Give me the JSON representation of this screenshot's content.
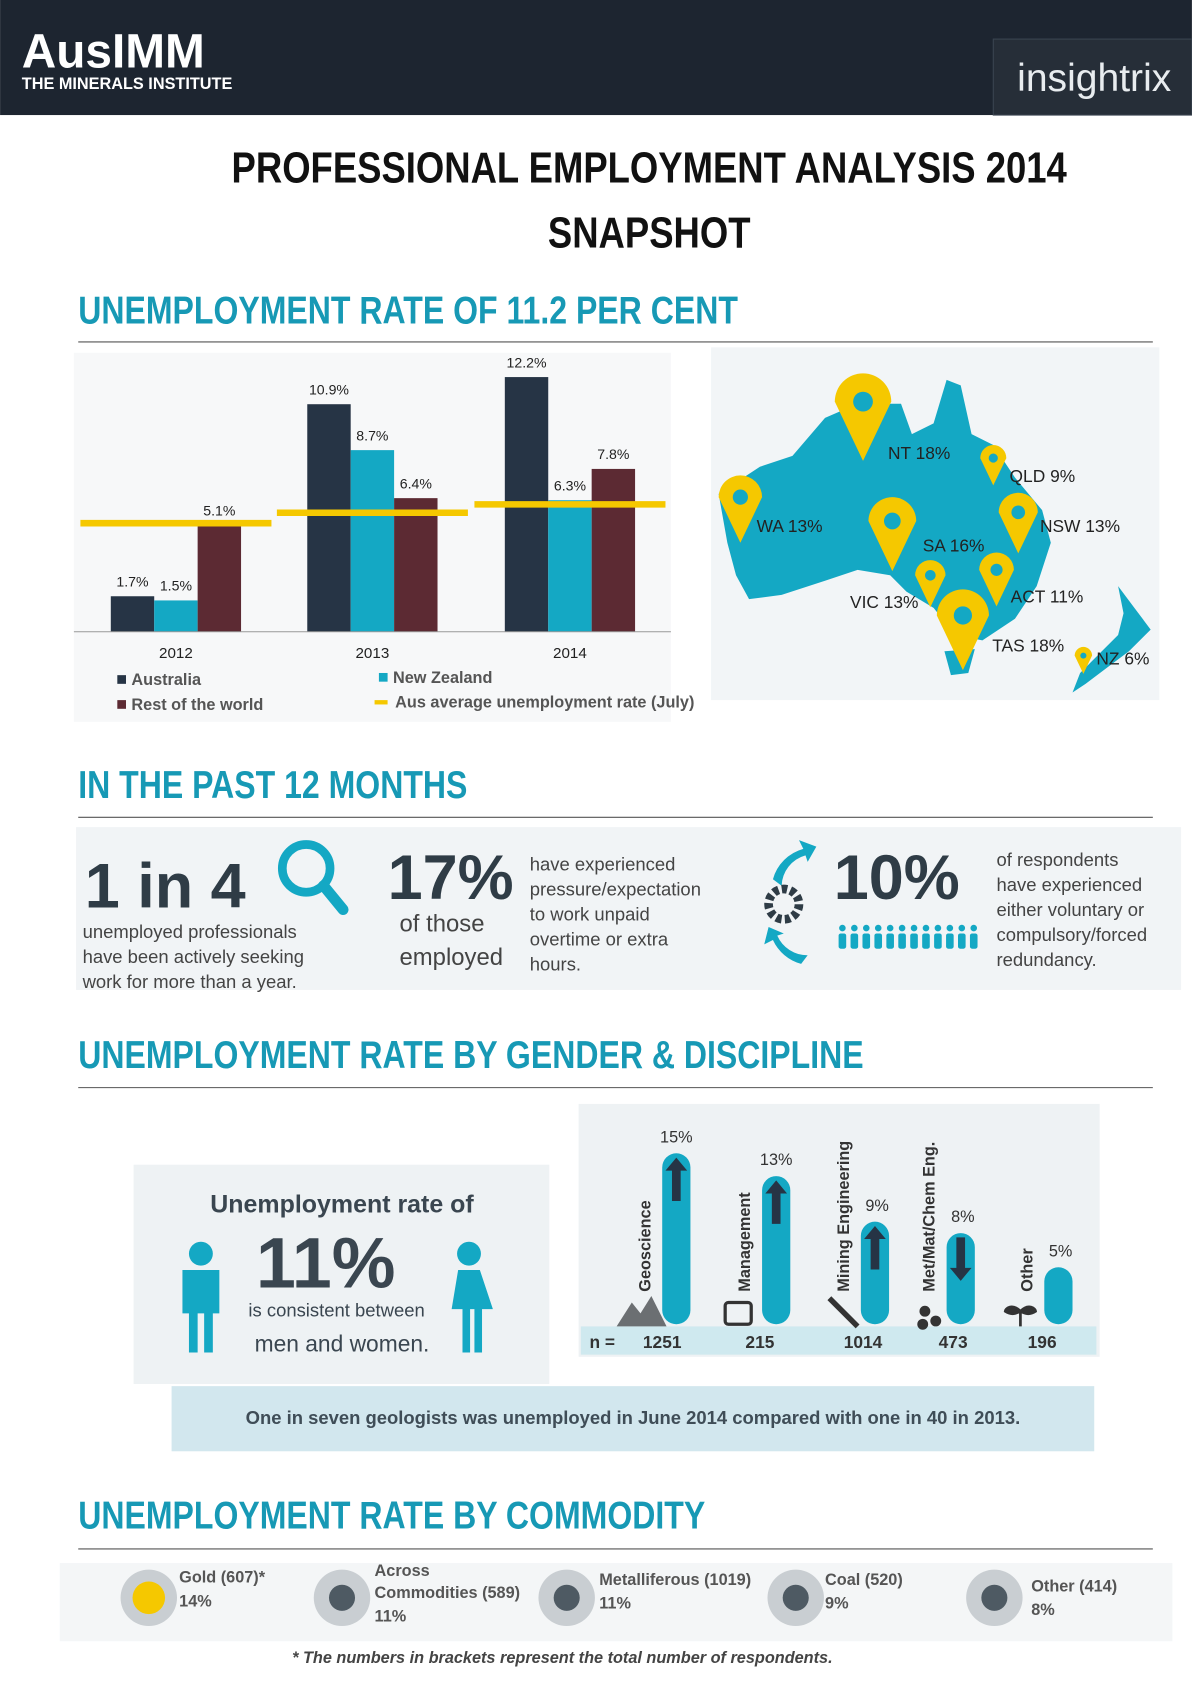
{
  "header": {
    "logo": "AusIMM",
    "logo_sub": "THE MINERALS INSTITUTE",
    "partner": "insightrix"
  },
  "title_lines": [
    "PROFESSIONAL EMPLOYMENT ANALYSIS 2014",
    "SNAPSHOT"
  ],
  "headings": [
    "UNEMPLOYMENT RATE OF 11.2 PER CENT",
    "IN THE PAST 12 MONTHS",
    "UNEMPLOYMENT RATE BY GENDER & DISCIPLINE",
    "UNEMPLOYMENT RATE BY COMMODITY"
  ],
  "chart_data": [
    {
      "type": "bar",
      "categories": [
        "2012",
        "2013",
        "2014"
      ],
      "series": [
        {
          "name": "Australia",
          "color": "#263445",
          "values": [
            1.7,
            10.9,
            12.2
          ],
          "value_labels": [
            "1.7%",
            "10.9%",
            "12.2%"
          ]
        },
        {
          "name": "New Zealand",
          "color": "#14a8c4",
          "values": [
            1.5,
            8.7,
            6.3
          ],
          "value_labels": [
            "1.5%",
            "8.7%",
            "6.3%"
          ]
        },
        {
          "name": "Rest of the world",
          "color": "#5c2a33",
          "values": [
            5.1,
            6.4,
            7.8
          ],
          "value_labels": [
            "5.1%",
            "6.4%",
            "7.8%"
          ]
        }
      ],
      "reference": {
        "name": "Aus average unemployment rate (July)",
        "color": "#f5c800",
        "values": [
          5.2,
          5.7,
          6.1
        ]
      },
      "ylim": [
        0,
        13
      ]
    },
    {
      "type": "bar",
      "categories": [
        "Geoscience",
        "Management",
        "Mining Engineering",
        "Met/Mat/Chem Eng.",
        "Other"
      ],
      "values": [
        15,
        13,
        9,
        8,
        5
      ],
      "value_labels": [
        "15%",
        "13%",
        "9%",
        "8%",
        "5%"
      ],
      "trend": [
        "up",
        "up",
        "up",
        "down",
        null
      ],
      "color": "#14a8c4",
      "n_label": "n =",
      "n_values": [
        1251,
        215,
        1014,
        473,
        196
      ],
      "ylim": [
        0,
        16
      ]
    }
  ],
  "map": {
    "pins": [
      "NT 18%",
      "QLD 9%",
      "WA 13%",
      "NSW 13%",
      "SA 16%",
      "VIC 13%",
      "ACT 11%",
      "TAS 18%",
      "NZ 6%"
    ]
  },
  "past_12_months": {
    "stat1": {
      "big": "1 in 4",
      "lines": [
        "unemployed professionals",
        "have been actively seeking",
        "work for more than a year."
      ]
    },
    "stat2": {
      "big": "17%",
      "sub_lines": [
        "of those",
        "employed"
      ],
      "lines": [
        "have experienced",
        "pressure/expectation",
        "to work unpaid",
        "overtime or extra",
        "hours."
      ]
    },
    "stat3": {
      "big": "10%",
      "lines": [
        "of respondents",
        "have experienced",
        "either voluntary or",
        "compulsory/forced",
        "redundancy."
      ]
    }
  },
  "gender": {
    "line1": "Unemployment rate of",
    "big": "11%",
    "line2": "is consistent between",
    "line3": "men and women."
  },
  "note": "One in seven geologists was unemployed in June 2014 compared with one in 40 in 2013.",
  "commodities": [
    {
      "label_lines": [
        "Gold (607)*"
      ],
      "value": "14%"
    },
    {
      "label_lines": [
        "Across",
        "Commodities (589)"
      ],
      "value": "11%"
    },
    {
      "label_lines": [
        "Metalliferous (1019)"
      ],
      "value": "11%"
    },
    {
      "label_lines": [
        "Coal (520)"
      ],
      "value": "9%"
    },
    {
      "label_lines": [
        "Other (414)"
      ],
      "value": "8%"
    }
  ],
  "footnote": "* The numbers in brackets represent the total number of respondents."
}
